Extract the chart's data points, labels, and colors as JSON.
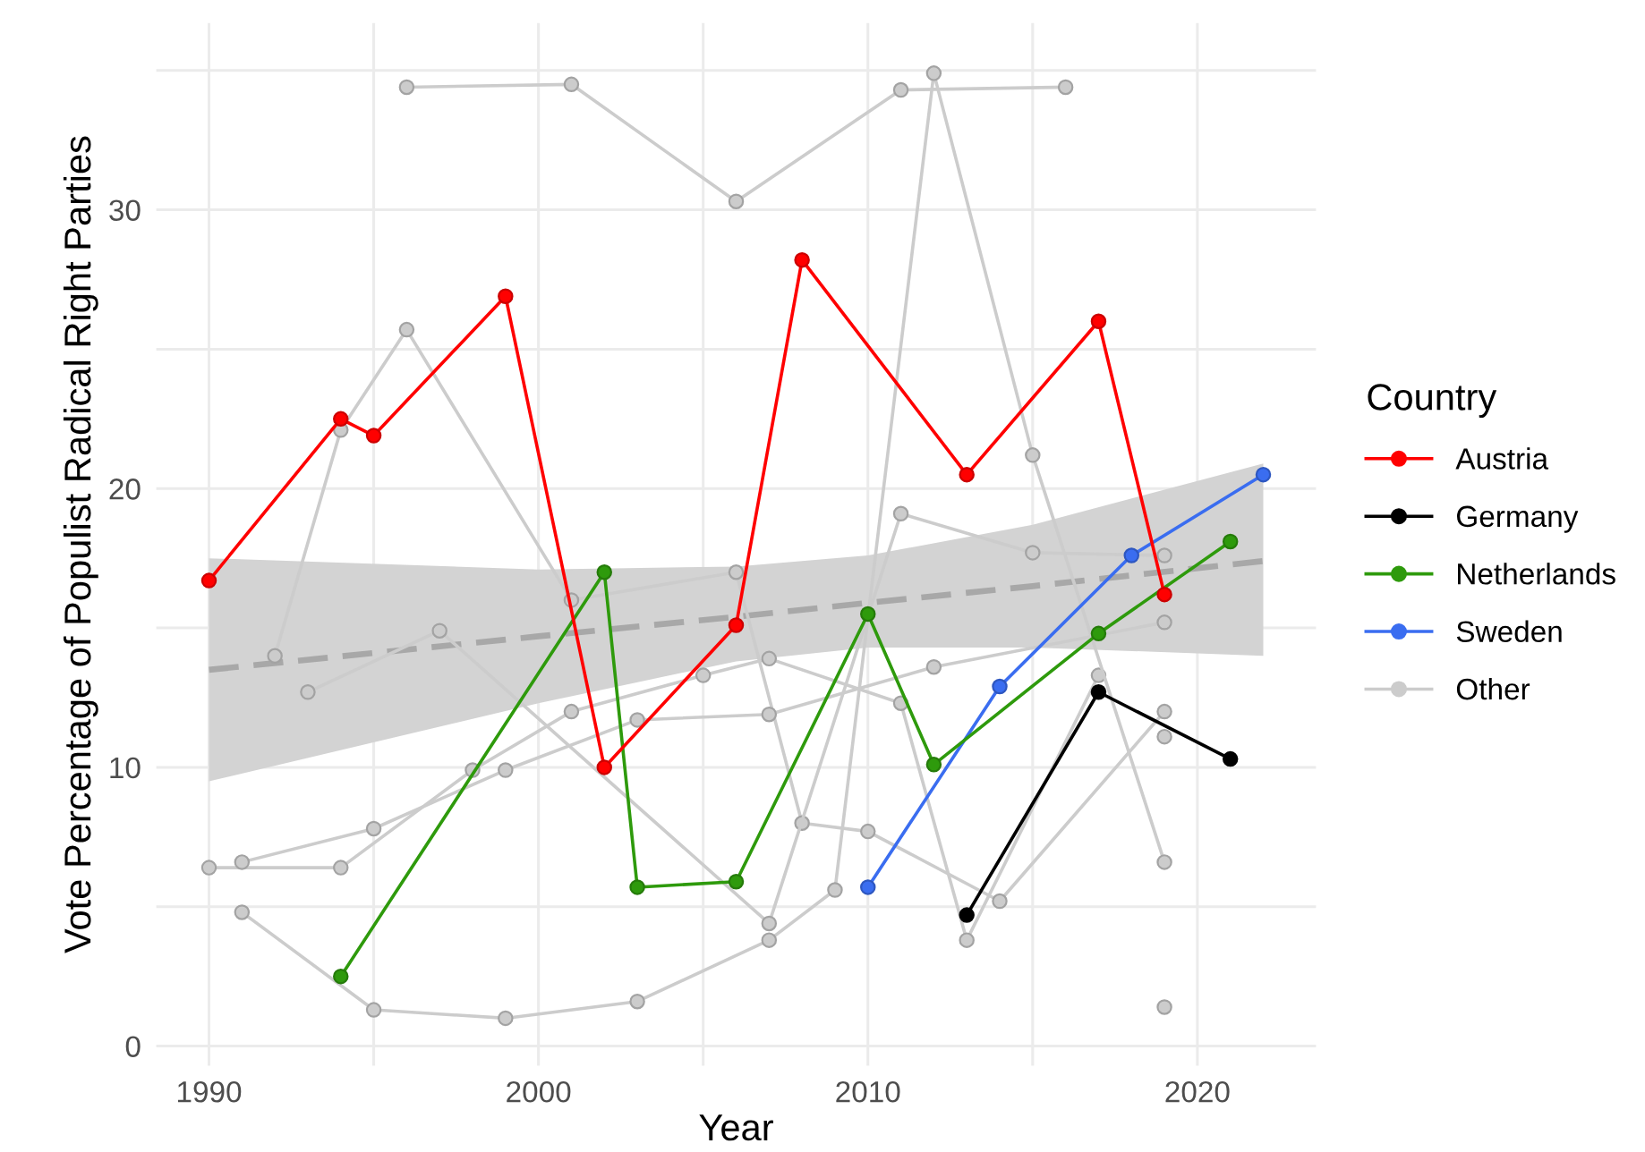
{
  "chart_data": {
    "type": "line",
    "xlabel": "Year",
    "ylabel": "Vote Percentage of Populist Radical Right Parties",
    "legend_title": "Country",
    "legend": "right",
    "grid": true,
    "marker": "circle",
    "xlim": [
      1988.4,
      2023.6
    ],
    "xticks": [
      1990,
      {
        "value": 1995,
        "label": null
      },
      2000,
      {
        "value": 2005,
        "label": null
      },
      2010,
      {
        "value": 2015,
        "label": null
      },
      2020
    ],
    "ylim": [
      -0.7,
      36.7
    ],
    "yticks": [
      0,
      {
        "value": 5,
        "label": null
      },
      10,
      {
        "value": 15,
        "label": null
      },
      20,
      {
        "value": 25,
        "label": null
      },
      30,
      {
        "value": 35,
        "label": null
      }
    ],
    "series": [
      {
        "name": "Austria",
        "color": "#ff0000",
        "x": [
          1990,
          1994,
          1995,
          1999,
          2002,
          2006,
          2008,
          2013,
          2017,
          2019
        ],
        "values": [
          16.7,
          22.5,
          21.9,
          26.9,
          10.0,
          15.1,
          28.2,
          20.5,
          26.0,
          16.2
        ]
      },
      {
        "name": "Germany",
        "color": "#000000",
        "x": [
          2013,
          2017,
          2021
        ],
        "values": [
          4.7,
          12.7,
          10.3
        ]
      },
      {
        "name": "Netherlands",
        "color": "#2e9a0c",
        "x": [
          1994,
          2002,
          2003,
          2006,
          2010,
          2012,
          2017,
          2021
        ],
        "values": [
          2.5,
          17.0,
          5.7,
          5.9,
          15.5,
          10.1,
          14.8,
          18.1
        ]
      },
      {
        "name": "Sweden",
        "color": "#3a6df0",
        "x": [
          2010,
          2014,
          2018,
          2022
        ],
        "values": [
          5.7,
          12.9,
          17.6,
          20.5
        ]
      },
      {
        "name": "Other",
        "color": "#cccccc",
        "x": [
          1996,
          2001,
          2006,
          2011,
          2016,
          null,
          1992,
          1994,
          1996,
          2001,
          2006,
          2008,
          2010,
          2014,
          2019,
          null,
          1993,
          1997,
          2007,
          2011,
          2015,
          2019,
          null,
          1990,
          1994,
          1998,
          2001,
          2005,
          2007,
          2011,
          2013,
          2017,
          null,
          1991,
          1995,
          1999,
          2003,
          2007,
          2012,
          2019,
          null,
          1991,
          1995,
          1999,
          2003,
          2007,
          2009,
          2012,
          2015,
          2019,
          null,
          2019,
          null,
          2019
        ],
        "values": [
          34.4,
          34.5,
          30.3,
          34.3,
          34.4,
          null,
          14.0,
          22.1,
          25.7,
          16.0,
          17.0,
          8.0,
          7.7,
          5.2,
          12.0,
          null,
          12.7,
          14.9,
          4.4,
          19.1,
          17.7,
          17.6,
          null,
          6.4,
          6.4,
          9.9,
          12.0,
          13.3,
          13.9,
          12.3,
          3.8,
          13.3,
          null,
          6.6,
          7.8,
          9.9,
          11.7,
          11.9,
          13.6,
          15.2,
          null,
          4.8,
          1.3,
          1.0,
          1.6,
          3.8,
          5.6,
          34.9,
          21.2,
          6.6,
          null,
          1.4,
          null,
          11.1
        ]
      },
      {
        "type": "line",
        "color": "#a8a8a8",
        "line_style": "dashed",
        "marker": "none",
        "x": [
          1990,
          2000,
          2006,
          2010,
          2015,
          2022
        ],
        "values": [
          13.5,
          14.7,
          15.4,
          15.9,
          16.5,
          17.4
        ],
        "lower": [
          9.5,
          12.3,
          13.8,
          14.3,
          14.3,
          14.0
        ],
        "upper": [
          17.5,
          17.1,
          17.2,
          17.6,
          18.7,
          20.9
        ]
      }
    ]
  }
}
